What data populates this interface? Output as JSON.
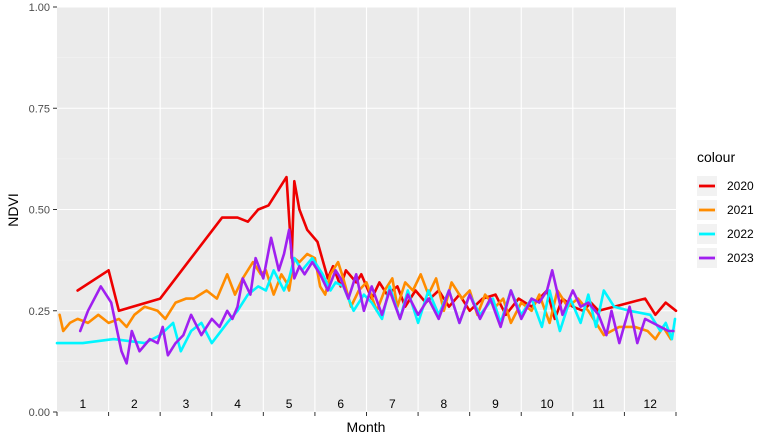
{
  "chart_data": {
    "type": "line",
    "xlabel": "Month",
    "ylabel": "NDVI",
    "xlim": [
      0.5,
      12.5
    ],
    "ylim": [
      0,
      1
    ],
    "yticks": [
      0,
      0.25,
      0.5,
      0.75,
      1
    ],
    "ytick_labels": [
      "0.00",
      "0.25",
      "0.50",
      "0.75",
      "1.00"
    ],
    "months": [
      "1",
      "2",
      "3",
      "4",
      "5",
      "6",
      "7",
      "8",
      "9",
      "10",
      "11",
      "12"
    ],
    "grid": true,
    "legend": {
      "title": "colour",
      "position": "right"
    },
    "series": [
      {
        "name": "2020",
        "color": "#EE0000",
        "x": [
          0.9,
          1.5,
          1.7,
          2.5,
          3.1,
          3.7,
          4.0,
          4.2,
          4.4,
          4.6,
          4.95,
          5.05,
          5.1,
          5.2,
          5.35,
          5.55,
          5.75,
          5.85,
          6.0,
          6.1,
          6.3,
          6.4,
          6.6,
          6.75,
          6.9,
          7.1,
          7.25,
          7.45,
          7.65,
          7.9,
          8.1,
          8.3,
          8.5,
          8.75,
          9.0,
          9.2,
          9.45,
          9.7,
          10.0,
          10.15,
          10.3,
          10.5,
          10.7,
          10.85,
          11.0,
          11.3,
          11.6,
          11.9,
          12.1,
          12.3,
          12.5
        ],
        "y": [
          0.3,
          0.35,
          0.25,
          0.28,
          0.38,
          0.48,
          0.48,
          0.47,
          0.5,
          0.51,
          0.58,
          0.38,
          0.57,
          0.5,
          0.45,
          0.42,
          0.33,
          0.36,
          0.31,
          0.35,
          0.32,
          0.34,
          0.28,
          0.32,
          0.29,
          0.31,
          0.26,
          0.3,
          0.27,
          0.3,
          0.26,
          0.29,
          0.25,
          0.28,
          0.29,
          0.24,
          0.28,
          0.26,
          0.3,
          0.23,
          0.28,
          0.26,
          0.25,
          0.27,
          0.25,
          0.26,
          0.27,
          0.28,
          0.24,
          0.27,
          0.25
        ]
      },
      {
        "name": "2021",
        "color": "#FF8C00",
        "x": [
          0.55,
          0.62,
          0.75,
          0.9,
          1.1,
          1.3,
          1.5,
          1.7,
          1.85,
          2.0,
          2.2,
          2.45,
          2.6,
          2.8,
          3.0,
          3.15,
          3.4,
          3.6,
          3.8,
          3.95,
          4.1,
          4.3,
          4.45,
          4.55,
          4.7,
          4.85,
          4.95,
          5.0,
          5.1,
          5.2,
          5.35,
          5.5,
          5.6,
          5.7,
          5.8,
          5.95,
          6.05,
          6.2,
          6.35,
          6.5,
          6.7,
          6.85,
          7.0,
          7.1,
          7.25,
          7.4,
          7.55,
          7.7,
          7.85,
          8.0,
          8.15,
          8.35,
          8.5,
          8.65,
          8.8,
          9.0,
          9.15,
          9.3,
          9.5,
          9.7,
          9.85,
          10.05,
          10.2,
          10.4,
          10.6,
          10.8,
          10.95,
          11.1,
          11.4,
          11.7,
          11.95,
          12.1,
          12.25,
          12.4,
          12.45
        ],
        "y": [
          0.24,
          0.2,
          0.22,
          0.23,
          0.22,
          0.24,
          0.22,
          0.23,
          0.21,
          0.24,
          0.26,
          0.25,
          0.23,
          0.27,
          0.28,
          0.28,
          0.3,
          0.28,
          0.34,
          0.29,
          0.33,
          0.37,
          0.34,
          0.35,
          0.29,
          0.34,
          0.32,
          0.3,
          0.38,
          0.37,
          0.39,
          0.38,
          0.31,
          0.29,
          0.34,
          0.37,
          0.33,
          0.26,
          0.3,
          0.32,
          0.25,
          0.3,
          0.33,
          0.26,
          0.32,
          0.3,
          0.34,
          0.29,
          0.33,
          0.25,
          0.32,
          0.28,
          0.3,
          0.24,
          0.29,
          0.26,
          0.28,
          0.22,
          0.27,
          0.25,
          0.29,
          0.22,
          0.3,
          0.26,
          0.28,
          0.25,
          0.22,
          0.19,
          0.21,
          0.21,
          0.2,
          0.18,
          0.21,
          0.18,
          0.2
        ]
      },
      {
        "name": "2022",
        "color": "#00F5FF",
        "x": [
          0.5,
          1.0,
          1.6,
          2.2,
          2.5,
          2.75,
          2.9,
          3.1,
          3.3,
          3.5,
          3.8,
          4.0,
          4.2,
          4.4,
          4.55,
          4.7,
          4.9,
          5.0,
          5.1,
          5.25,
          5.45,
          5.65,
          5.8,
          5.9,
          6.05,
          6.25,
          6.45,
          6.6,
          6.8,
          6.95,
          7.15,
          7.3,
          7.5,
          7.7,
          7.9,
          8.1,
          8.3,
          8.5,
          8.7,
          8.95,
          9.1,
          9.3,
          9.5,
          9.7,
          9.9,
          10.05,
          10.25,
          10.45,
          10.65,
          10.8,
          10.95,
          11.1,
          11.3,
          11.6,
          12.0,
          12.2,
          12.3,
          12.42,
          12.48
        ],
        "y": [
          0.17,
          0.17,
          0.18,
          0.17,
          0.19,
          0.22,
          0.15,
          0.2,
          0.22,
          0.17,
          0.22,
          0.25,
          0.29,
          0.31,
          0.3,
          0.35,
          0.3,
          0.33,
          0.38,
          0.35,
          0.38,
          0.34,
          0.3,
          0.32,
          0.31,
          0.25,
          0.29,
          0.27,
          0.23,
          0.31,
          0.23,
          0.3,
          0.22,
          0.3,
          0.24,
          0.3,
          0.22,
          0.29,
          0.24,
          0.28,
          0.22,
          0.3,
          0.24,
          0.28,
          0.21,
          0.3,
          0.2,
          0.28,
          0.22,
          0.29,
          0.21,
          0.3,
          0.26,
          0.25,
          0.24,
          0.2,
          0.22,
          0.18,
          0.23
        ]
      },
      {
        "name": "2023",
        "color": "#A020F0",
        "x": [
          0.95,
          1.1,
          1.35,
          1.55,
          1.75,
          1.85,
          1.95,
          2.1,
          2.3,
          2.45,
          2.55,
          2.65,
          2.8,
          2.95,
          3.1,
          3.3,
          3.5,
          3.65,
          3.8,
          3.9,
          4.0,
          4.1,
          4.25,
          4.35,
          4.5,
          4.65,
          4.8,
          4.9,
          5.0,
          5.1,
          5.2,
          5.3,
          5.45,
          5.6,
          5.75,
          5.9,
          6.0,
          6.15,
          6.3,
          6.45,
          6.6,
          6.8,
          6.95,
          7.15,
          7.3,
          7.5,
          7.7,
          7.9,
          8.1,
          8.3,
          8.5,
          8.7,
          8.9,
          9.1,
          9.3,
          9.5,
          9.7,
          9.85,
          10.0,
          10.1,
          10.3,
          10.5,
          10.65,
          10.8,
          11.0,
          11.15,
          11.25,
          11.4,
          11.6,
          11.75,
          11.9,
          12.05,
          12.2,
          12.35,
          12.45
        ],
        "y": [
          0.2,
          0.25,
          0.31,
          0.27,
          0.15,
          0.12,
          0.2,
          0.15,
          0.18,
          0.17,
          0.21,
          0.14,
          0.17,
          0.19,
          0.24,
          0.19,
          0.23,
          0.21,
          0.25,
          0.23,
          0.26,
          0.33,
          0.29,
          0.38,
          0.33,
          0.43,
          0.35,
          0.39,
          0.45,
          0.33,
          0.36,
          0.34,
          0.37,
          0.34,
          0.3,
          0.35,
          0.33,
          0.28,
          0.34,
          0.25,
          0.31,
          0.24,
          0.3,
          0.23,
          0.29,
          0.24,
          0.28,
          0.23,
          0.3,
          0.22,
          0.29,
          0.23,
          0.28,
          0.21,
          0.3,
          0.23,
          0.28,
          0.27,
          0.3,
          0.35,
          0.24,
          0.3,
          0.26,
          0.27,
          0.24,
          0.19,
          0.25,
          0.17,
          0.26,
          0.17,
          0.23,
          0.22,
          0.21,
          0.2,
          0.2
        ]
      }
    ]
  }
}
